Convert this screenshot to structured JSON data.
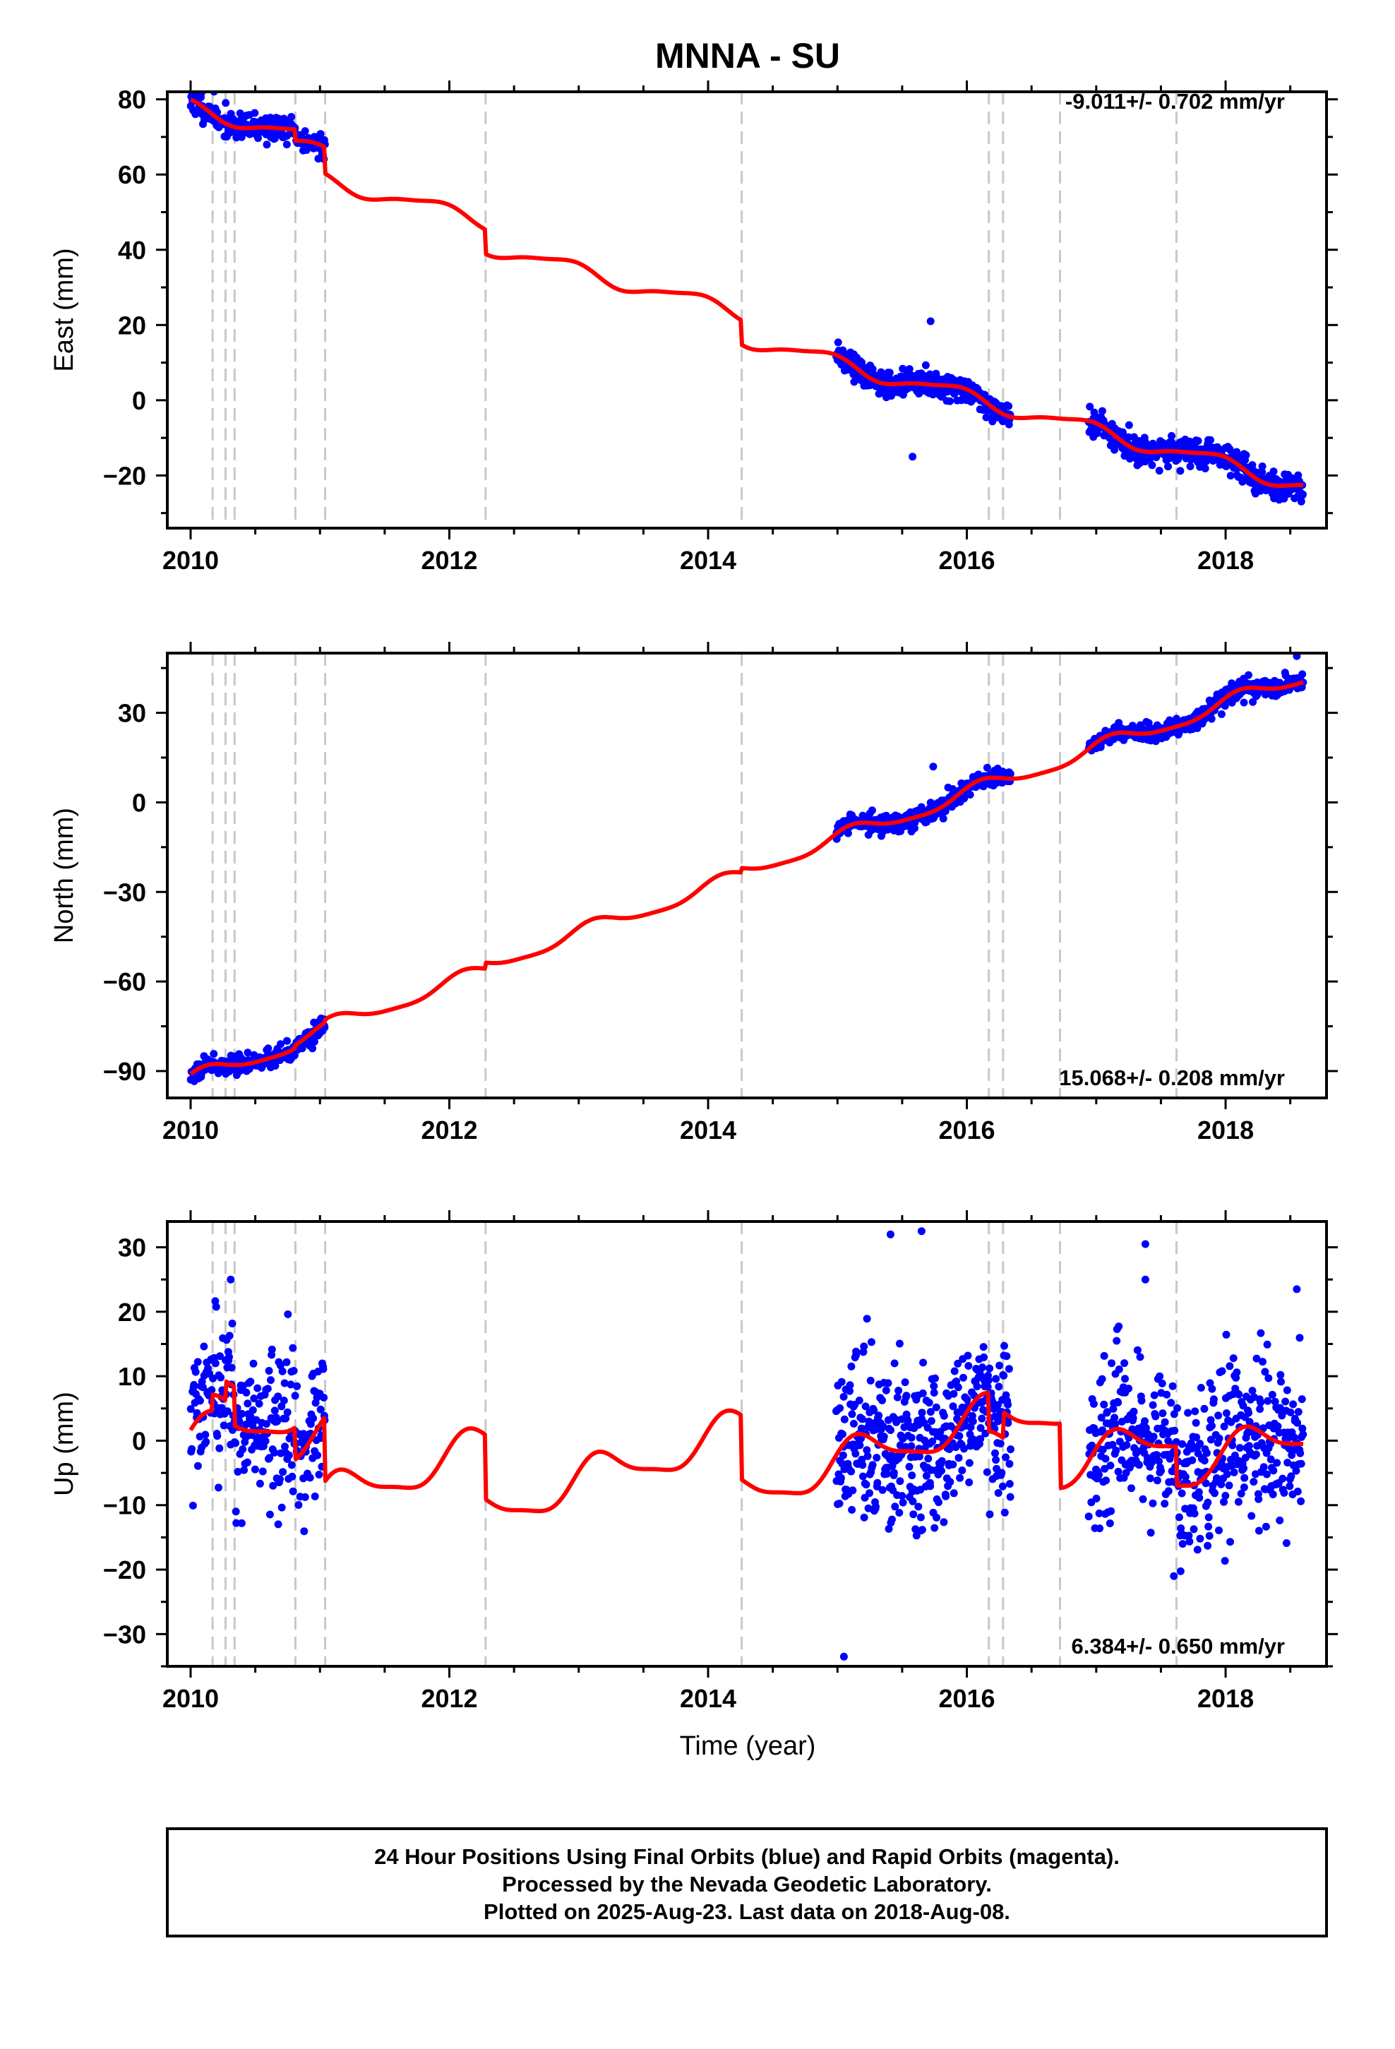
{
  "title": "MNNA - SU",
  "xlabel": "Time (year)",
  "colors": {
    "final_orbits": "#0000ff",
    "model_fit": "#ff0000",
    "step_lines": "#c8c8c8",
    "axes": "#000000"
  },
  "footer": {
    "line1": "24 Hour Positions Using Final Orbits (blue) and Rapid Orbits (magenta).",
    "line2": "Processed by the Nevada Geodetic Laboratory.",
    "line3": "Plotted on 2025-Aug-23. Last data on 2018-Aug-08."
  },
  "chart_data": [
    {
      "type": "scatter",
      "panel": "east",
      "ylabel": "East (mm)",
      "rate_label": "-9.011+/- 0.702 mm/yr",
      "rate_position": "top-right",
      "xlim": [
        2009.82,
        2018.78
      ],
      "ylim": [
        -34,
        82
      ],
      "x_ticks": [
        2010,
        2012,
        2014,
        2016,
        2018
      ],
      "y_ticks": [
        -20,
        0,
        20,
        40,
        60,
        80
      ],
      "step_epochs": [
        2010.17,
        2010.27,
        2010.34,
        2010.81,
        2011.04,
        2012.28,
        2014.26,
        2016.17,
        2016.28,
        2016.72,
        2017.62
      ],
      "jumps": [
        [
          2010.81,
          -3
        ],
        [
          2011.04,
          -7
        ],
        [
          2012.28,
          -6.5
        ],
        [
          2014.26,
          -6.5
        ]
      ],
      "model": {
        "base": 78,
        "rate": -9.011,
        "annual": 2.0,
        "annual_phase": 2.3,
        "semiannual": 0.5
      },
      "observations": {
        "seed": 11,
        "segments": [
          [
            2010.0,
            2011.04,
            230
          ],
          [
            2014.99,
            2016.34,
            360
          ],
          [
            2016.94,
            2018.6,
            430
          ]
        ],
        "noise": 1.8,
        "outliers": [
          [
            2015.72,
            21
          ],
          [
            2015.58,
            -15
          ]
        ]
      }
    },
    {
      "type": "scatter",
      "panel": "north",
      "ylabel": "North (mm)",
      "rate_label": "15.068+/- 0.208 mm/yr",
      "rate_position": "bottom-right",
      "xlim": [
        2009.82,
        2018.78
      ],
      "ylim": [
        -99,
        50
      ],
      "x_ticks": [
        2010,
        2012,
        2014,
        2016,
        2018
      ],
      "y_ticks": [
        -90,
        -60,
        -30,
        0,
        30
      ],
      "step_epochs": [
        2010.17,
        2010.27,
        2010.34,
        2010.81,
        2011.04,
        2012.28,
        2014.26,
        2016.17,
        2016.28,
        2016.72,
        2017.62
      ],
      "jumps": [
        [
          2010.81,
          1
        ],
        [
          2011.04,
          1
        ],
        [
          2012.28,
          2
        ],
        [
          2014.26,
          1.5
        ]
      ],
      "model": {
        "base": -93,
        "rate": 15.068,
        "annual": 2.5,
        "annual_phase": 0.8,
        "semiannual": 0.6
      },
      "observations": {
        "seed": 23,
        "segments": [
          [
            2010.0,
            2011.04,
            230
          ],
          [
            2014.99,
            2016.34,
            360
          ],
          [
            2016.94,
            2018.6,
            430
          ]
        ],
        "noise": 1.5,
        "outliers": [
          [
            2015.74,
            12
          ],
          [
            2018.55,
            49
          ]
        ]
      }
    },
    {
      "type": "scatter",
      "panel": "up",
      "ylabel": "Up (mm)",
      "rate_label": "6.384+/- 0.650 mm/yr",
      "rate_position": "bottom-right",
      "xlim": [
        2009.82,
        2018.78
      ],
      "ylim": [
        -35,
        34
      ],
      "x_ticks": [
        2010,
        2012,
        2014,
        2016,
        2018
      ],
      "y_ticks": [
        -30,
        -20,
        -10,
        0,
        10,
        20,
        30
      ],
      "step_epochs": [
        2010.17,
        2010.27,
        2010.34,
        2010.81,
        2011.04,
        2012.28,
        2014.26,
        2016.17,
        2016.28,
        2016.72,
        2017.62
      ],
      "jumps": [
        [
          2010.17,
          2.5
        ],
        [
          2010.27,
          3
        ],
        [
          2010.34,
          -6
        ],
        [
          2010.81,
          -5
        ],
        [
          2011.04,
          -10
        ],
        [
          2012.28,
          -10
        ],
        [
          2014.26,
          -10
        ],
        [
          2016.17,
          -6
        ],
        [
          2016.28,
          4
        ],
        [
          2016.72,
          -10
        ],
        [
          2017.62,
          -6
        ]
      ],
      "model": {
        "base": 0,
        "rate": 6.384,
        "annual": 3.0,
        "annual_phase": 0.5,
        "semiannual": 0.8
      },
      "observations": {
        "seed": 37,
        "segments": [
          [
            2010.0,
            2011.04,
            260
          ],
          [
            2014.99,
            2016.34,
            420
          ],
          [
            2016.94,
            2018.6,
            470
          ]
        ],
        "noise": 6.0,
        "outliers": [
          [
            2015.41,
            32
          ],
          [
            2015.65,
            32.5
          ],
          [
            2017.38,
            30.5
          ],
          [
            2017.38,
            25
          ],
          [
            2015.05,
            -33.5
          ],
          [
            2010.31,
            25
          ],
          [
            2018.55,
            23.5
          ],
          [
            2017.6,
            -21
          ]
        ]
      }
    }
  ]
}
